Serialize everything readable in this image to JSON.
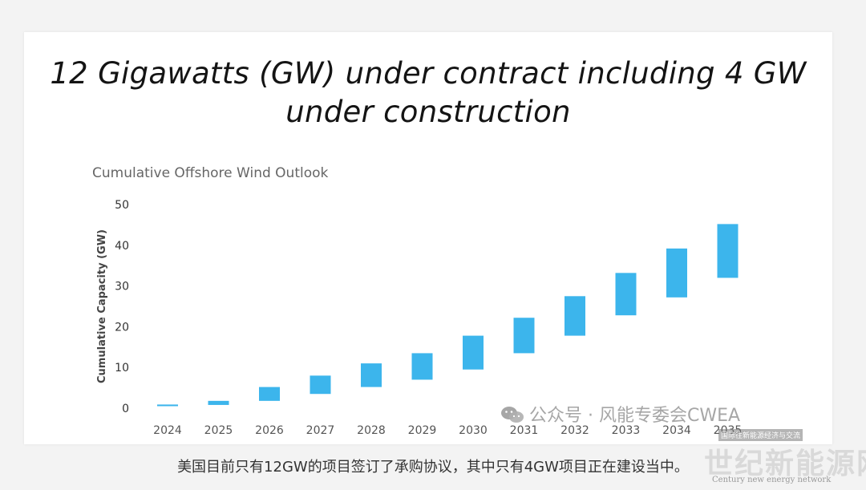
{
  "slide": {
    "title_line1": "12 Gigawatts (GW) under contract including 4 GW",
    "title_line2": "under construction"
  },
  "chart_data": {
    "type": "bar",
    "subtype": "floating-range",
    "title": "Cumulative Offshore Wind Outlook",
    "xlabel": "",
    "ylabel": "Cumulative Capacity (GW)",
    "ylim": [
      0,
      50
    ],
    "yticks": [
      0,
      10,
      20,
      30,
      40,
      50
    ],
    "grid": false,
    "categories": [
      "2024",
      "2025",
      "2026",
      "2027",
      "2028",
      "2029",
      "2030",
      "2031",
      "2032",
      "2033",
      "2034",
      "2035"
    ],
    "series": [
      {
        "low": [
          0.5,
          0.8,
          1.8,
          3.5,
          5.2,
          7.0,
          9.5,
          13.5,
          17.8,
          22.8,
          27.2,
          32.0
        ],
        "high": [
          0.9,
          1.8,
          5.2,
          8.0,
          11.0,
          13.5,
          17.8,
          22.2,
          27.5,
          33.2,
          39.2,
          45.2
        ]
      }
    ],
    "bar_color": "#3cb5ec"
  },
  "watermark": {
    "text": "公众号 · 风能专委会CWEA",
    "icon": "wechat-icon"
  },
  "logo": {
    "subtitle": "国际往新能源经济与交流",
    "main": "世纪新能源网",
    "english": "Century new energy network"
  },
  "caption": "美国目前只有12GW的项目签订了承购协议，其中只有4GW项目正在建设当中。"
}
